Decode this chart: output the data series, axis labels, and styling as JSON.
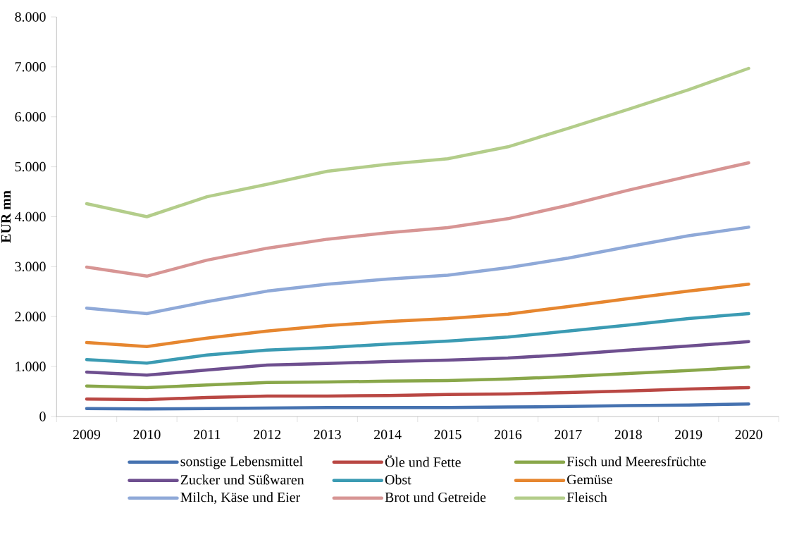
{
  "chart_data": {
    "type": "line",
    "ylabel": "EUR mn",
    "categories": [
      "2009",
      "2010",
      "2011",
      "2012",
      "2013",
      "2014",
      "2015",
      "2016",
      "2017",
      "2018",
      "2019",
      "2020"
    ],
    "ylim": [
      0,
      8000
    ],
    "yticks": [
      {
        "value": 0,
        "label": "0"
      },
      {
        "value": 1000,
        "label": "1.000"
      },
      {
        "value": 2000,
        "label": "2.000"
      },
      {
        "value": 3000,
        "label": "3.000"
      },
      {
        "value": 4000,
        "label": "4.000"
      },
      {
        "value": 5000,
        "label": "5.000"
      },
      {
        "value": 6000,
        "label": "6.000"
      },
      {
        "value": 7000,
        "label": "7.000"
      },
      {
        "value": 8000,
        "label": "8.000"
      }
    ],
    "grid": false,
    "legend": "bottom",
    "marker": "none",
    "line_style": "solid",
    "series": [
      {
        "name": "sonstige Lebensmittel",
        "color": "#4672b0",
        "values": [
          160,
          150,
          160,
          170,
          180,
          180,
          180,
          190,
          200,
          220,
          230,
          250
        ]
      },
      {
        "name": "Öle und Fette",
        "color": "#b94743",
        "values": [
          350,
          340,
          380,
          410,
          410,
          420,
          440,
          450,
          480,
          510,
          550,
          580
        ]
      },
      {
        "name": "Fisch und Meeresfrüchte",
        "color": "#89a74a",
        "values": [
          610,
          580,
          630,
          680,
          690,
          710,
          720,
          750,
          800,
          860,
          920,
          990
        ]
      },
      {
        "name": "Zucker und Süßwaren",
        "color": "#6e4f8f",
        "values": [
          890,
          830,
          930,
          1030,
          1060,
          1100,
          1130,
          1170,
          1240,
          1330,
          1410,
          1500
        ]
      },
      {
        "name": "Obst",
        "color": "#3b9bb3",
        "values": [
          1140,
          1070,
          1230,
          1330,
          1380,
          1450,
          1510,
          1590,
          1710,
          1830,
          1960,
          2060
        ]
      },
      {
        "name": "Gemüse",
        "color": "#e6862f",
        "values": [
          1480,
          1400,
          1570,
          1710,
          1820,
          1900,
          1960,
          2050,
          2200,
          2360,
          2510,
          2650
        ]
      },
      {
        "name": "Milch, Käse und Eier",
        "color": "#8fa9d8",
        "values": [
          2170,
          2060,
          2300,
          2510,
          2650,
          2750,
          2830,
          2980,
          3170,
          3400,
          3620,
          3790
        ]
      },
      {
        "name": "Brot und Getreide",
        "color": "#d79594",
        "values": [
          2990,
          2810,
          3130,
          3370,
          3550,
          3680,
          3780,
          3960,
          4230,
          4530,
          4810,
          5080
        ]
      },
      {
        "name": "Fleisch",
        "color": "#b3cd8a",
        "values": [
          4260,
          4000,
          4400,
          4650,
          4910,
          5050,
          5160,
          5400,
          5770,
          6150,
          6540,
          6970
        ]
      }
    ]
  }
}
